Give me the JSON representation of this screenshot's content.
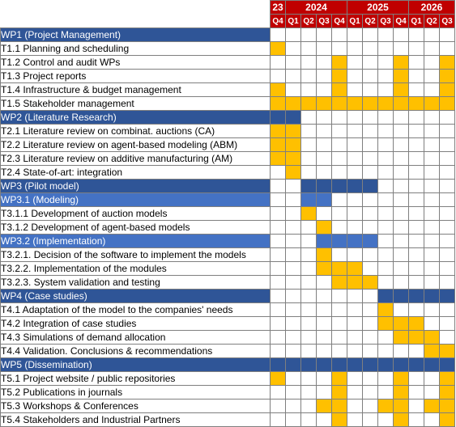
{
  "years": [
    {
      "label": "23",
      "span": 1
    },
    {
      "label": "2024",
      "span": 4
    },
    {
      "label": "2025",
      "span": 4
    },
    {
      "label": "2026",
      "span": 3
    }
  ],
  "quarters": [
    "Q4",
    "Q1",
    "Q2",
    "Q3",
    "Q4",
    "Q1",
    "Q2",
    "Q3",
    "Q4",
    "Q1",
    "Q2",
    "Q3"
  ],
  "colors": {
    "header": "#c00000",
    "wp": "#2f5597",
    "subwp": "#4472c4",
    "task": "#ffc000"
  },
  "rows": [
    {
      "label": "WP1 (Project Management)",
      "type": "wp",
      "active": []
    },
    {
      "label": "T1.1 Planning and scheduling",
      "type": "task",
      "active": [
        0
      ]
    },
    {
      "label": "T1.2 Control and audit WPs",
      "type": "task",
      "active": [
        4,
        8,
        11
      ]
    },
    {
      "label": "T1.3 Project reports",
      "type": "task",
      "active": [
        4,
        8,
        11
      ]
    },
    {
      "label": "T1.4 Infrastructure & budget management",
      "type": "task",
      "active": [
        0,
        4,
        8,
        11
      ]
    },
    {
      "label": "T1.5 Stakeholder management",
      "type": "task",
      "active": [
        0,
        1,
        2,
        3,
        4,
        5,
        6,
        7,
        8,
        9,
        10,
        11
      ]
    },
    {
      "label": "WP2 (Literature Research)",
      "type": "wp",
      "active": [
        0,
        1
      ]
    },
    {
      "label": "T2.1 Literature review on combinat. auctions (CA)",
      "type": "task",
      "active": [
        0,
        1
      ]
    },
    {
      "label": "T2.2 Literature review on agent-based modeling (ABM)",
      "type": "task",
      "active": [
        0,
        1
      ]
    },
    {
      "label": "T2.3 Literature review on additive manufacturing (AM)",
      "type": "task",
      "active": [
        0,
        1
      ]
    },
    {
      "label": "T2.4 State-of-art: integration",
      "type": "task",
      "active": [
        1
      ]
    },
    {
      "label": "WP3 (Pilot model)",
      "type": "wp",
      "active": [
        2,
        3,
        4,
        5,
        6
      ]
    },
    {
      "label": "WP3.1 (Modeling)",
      "type": "subwp",
      "active": [
        2,
        3
      ]
    },
    {
      "label": "T3.1.1 Development of auction models",
      "type": "task",
      "active": [
        2
      ]
    },
    {
      "label": "T3.1.2 Development of agent-based models",
      "type": "task",
      "active": [
        3
      ]
    },
    {
      "label": "WP3.2 (Implementation)",
      "type": "subwp",
      "active": [
        3,
        4,
        5,
        6
      ]
    },
    {
      "label": "T3.2.1. Decision of the software to implement the models",
      "type": "task",
      "active": [
        3
      ]
    },
    {
      "label": "T3.2.2. Implementation of the modules",
      "type": "task",
      "active": [
        3,
        4,
        5
      ]
    },
    {
      "label": "T3.2.3. System validation and testing",
      "type": "task",
      "active": [
        4,
        5,
        6
      ]
    },
    {
      "label": "WP4 (Case studies)",
      "type": "wp",
      "active": [
        7,
        8,
        9,
        10,
        11
      ]
    },
    {
      "label": "T4.1 Adaptation of the model to the companies' needs",
      "type": "task",
      "active": [
        7
      ]
    },
    {
      "label": "T4.2 Integration of case studies",
      "type": "task",
      "active": [
        7,
        8,
        9
      ]
    },
    {
      "label": "T4.3 Simulations of demand allocation",
      "type": "task",
      "active": [
        8,
        9,
        10
      ]
    },
    {
      "label": "T4.4 Validation. Conclusions & recommendations",
      "type": "task",
      "active": [
        10,
        11
      ]
    },
    {
      "label": "WP5 (Dissemination)",
      "type": "wp",
      "active": [
        0,
        1,
        2,
        3,
        4,
        5,
        6,
        7,
        8,
        9,
        10,
        11
      ]
    },
    {
      "label": "T5.1 Project website / public repositories",
      "type": "task",
      "active": [
        0,
        4,
        8,
        11
      ]
    },
    {
      "label": "T5.2 Publications in journals",
      "type": "task",
      "active": [
        4,
        8,
        11
      ]
    },
    {
      "label": "T5.3 Workshops & Conferences",
      "type": "task",
      "active": [
        3,
        4,
        7,
        8,
        10,
        11
      ]
    },
    {
      "label": "T5.4 Stakeholders and Industrial Partners",
      "type": "task",
      "active": [
        4,
        8,
        11
      ]
    }
  ]
}
